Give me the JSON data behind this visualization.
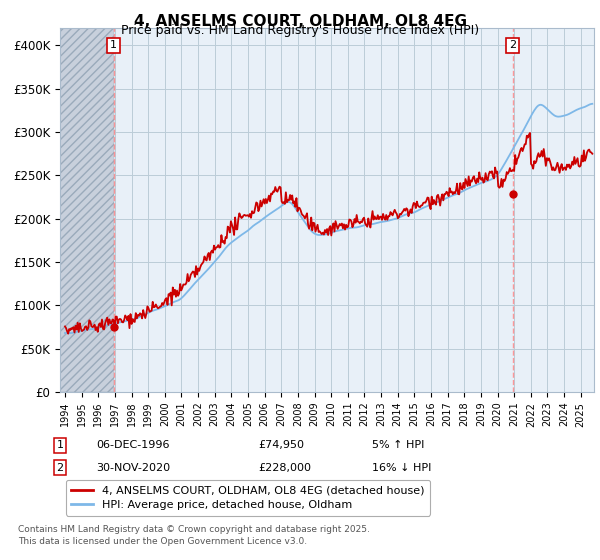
{
  "title": "4, ANSELMS COURT, OLDHAM, OL8 4EG",
  "subtitle": "Price paid vs. HM Land Registry's House Price Index (HPI)",
  "ylabel_ticks": [
    "£0",
    "£50K",
    "£100K",
    "£150K",
    "£200K",
    "£250K",
    "£300K",
    "£350K",
    "£400K"
  ],
  "ytick_values": [
    0,
    50000,
    100000,
    150000,
    200000,
    250000,
    300000,
    350000,
    400000
  ],
  "ylim": [
    0,
    420000
  ],
  "xlim_start": 1993.7,
  "xlim_end": 2025.8,
  "transaction1": {
    "date_num": 1996.92,
    "price": 74950,
    "label": "1",
    "info": "06-DEC-1996",
    "price_str": "£74,950",
    "hpi_pct": "5% ↑ HPI"
  },
  "transaction2": {
    "date_num": 2020.92,
    "price": 228000,
    "label": "2",
    "info": "30-NOV-2020",
    "price_str": "£228,000",
    "hpi_pct": "16% ↓ HPI"
  },
  "legend1_label": "4, ANSELMS COURT, OLDHAM, OL8 4EG (detached house)",
  "legend2_label": "HPI: Average price, detached house, Oldham",
  "footer": "Contains HM Land Registry data © Crown copyright and database right 2025.\nThis data is licensed under the Open Government Licence v3.0.",
  "hpi_color": "#7EB8E8",
  "price_color": "#CC0000",
  "dashed_line_color": "#FF8888",
  "plot_bg_color": "#E8F0F8",
  "hatch_color": "#C8D0DC",
  "grid_color": "#BBCCD8"
}
